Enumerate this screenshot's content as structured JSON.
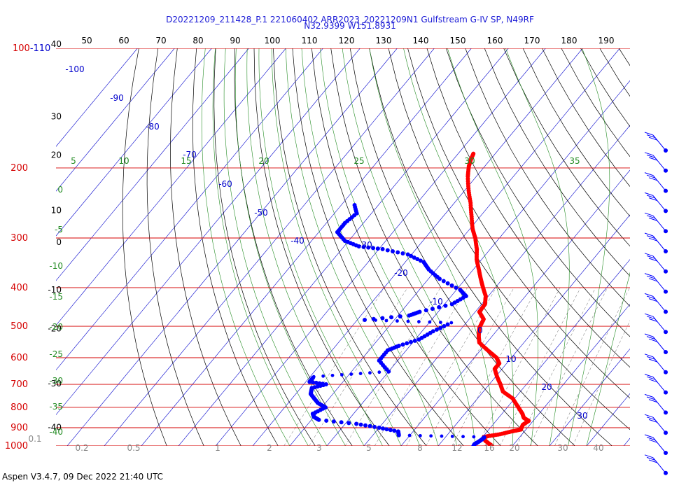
{
  "header": {
    "line1": "D20221209_211428_P.1 221060402 ARR2023_20221209N1 Gulfstream G-IV SP, N49RF",
    "line2": "N32.9399 W151.8931"
  },
  "footer": "Aspen V3.4.7, 09 Dec 2022  21:40 UTC",
  "colors": {
    "temperature": "#ff0000",
    "dewpoint": "#0000ff",
    "isobar": "#d40000",
    "isotherm_labels": "#0000cc",
    "dry_adiabat": "#000000",
    "moist_adiabat": "#228b22",
    "mixing_ratio": "#666666",
    "wind_barb": "#0000ff"
  },
  "chart_data": {
    "type": "skew-t log-p",
    "pressure_ticks": [
      "100-110",
      "200",
      "300",
      "400",
      "500",
      "600",
      "700",
      "800",
      "900",
      "1000"
    ],
    "pressure_levels": [
      1000,
      900,
      800,
      700,
      600,
      500,
      400,
      300,
      200,
      100
    ],
    "height_labels_kft": [
      {
        "label": "40",
        "p": 100
      },
      {
        "label": "30",
        "p": 152
      },
      {
        "label": "20",
        "p": 190
      },
      {
        "label": "10",
        "p": 262
      },
      {
        "label": "0",
        "p": 315
      },
      {
        "label": "-10",
        "p": 415
      },
      {
        "label": "-20",
        "p": 520
      },
      {
        "label": "-30",
        "p": 715
      },
      {
        "label": "-40",
        "p": 920
      }
    ],
    "top_scale": [
      "50",
      "60",
      "70",
      "80",
      "90",
      "100",
      "110",
      "120",
      "130",
      "140",
      "150",
      "160",
      "170",
      "180",
      "190"
    ],
    "isotherm_labels": [
      {
        "label": "-100",
        "T": -100
      },
      {
        "label": "-90",
        "T": -90
      },
      {
        "label": "-80",
        "T": -80
      },
      {
        "label": "-70",
        "T": -70
      },
      {
        "label": "-60",
        "T": -60
      },
      {
        "label": "-50",
        "T": -50
      },
      {
        "label": "-40",
        "T": -40
      },
      {
        "label": "-30",
        "T": -30
      },
      {
        "label": "-20",
        "T": -20
      },
      {
        "label": "-10",
        "T": -10
      },
      {
        "label": "0",
        "T": 0
      },
      {
        "label": "10",
        "T": 10
      },
      {
        "label": "20",
        "T": 20
      },
      {
        "label": "30",
        "T": 30
      }
    ],
    "moist_adiabat_labels_top": [
      "5",
      "10",
      "15",
      "20",
      "25",
      "30",
      "35"
    ],
    "moist_adiabat_labels_left": [
      "0",
      "-5",
      "-10",
      "-15",
      "-20",
      "-25",
      "-30",
      "-35",
      "-40"
    ],
    "mixing_ratio_labels": [
      "0.1",
      "0.2",
      "0.5",
      "1",
      "2",
      "3",
      "5",
      "8",
      "12",
      "16",
      "20",
      "30",
      "40"
    ],
    "temperature_profile": [
      {
        "p": 1000,
        "T": 14.5
      },
      {
        "p": 990,
        "T": 13.5
      },
      {
        "p": 970,
        "T": 11.5
      },
      {
        "p": 950,
        "T": 10.3
      },
      {
        "p": 945,
        "T": 11.3
      },
      {
        "p": 935,
        "T": 14.0
      },
      {
        "p": 920,
        "T": 16.5
      },
      {
        "p": 910,
        "T": 18.6
      },
      {
        "p": 885,
        "T": 18.1
      },
      {
        "p": 865,
        "T": 18.8
      },
      {
        "p": 850,
        "T": 16.8
      },
      {
        "p": 830,
        "T": 15.5
      },
      {
        "p": 800,
        "T": 13.0
      },
      {
        "p": 760,
        "T": 9.5
      },
      {
        "p": 730,
        "T": 5.3
      },
      {
        "p": 700,
        "T": 3.0
      },
      {
        "p": 670,
        "T": 0.4
      },
      {
        "p": 640,
        "T": -2.0
      },
      {
        "p": 620,
        "T": -2.0
      },
      {
        "p": 600,
        "T": -4.0
      },
      {
        "p": 575,
        "T": -8.0
      },
      {
        "p": 550,
        "T": -12.0
      },
      {
        "p": 530,
        "T": -13.6
      },
      {
        "p": 505,
        "T": -15.3
      },
      {
        "p": 480,
        "T": -16.1
      },
      {
        "p": 460,
        "T": -18.9
      },
      {
        "p": 440,
        "T": -19.1
      },
      {
        "p": 420,
        "T": -20.7
      },
      {
        "p": 400,
        "T": -23.3
      },
      {
        "p": 380,
        "T": -25.9
      },
      {
        "p": 360,
        "T": -28.5
      },
      {
        "p": 340,
        "T": -31.3
      },
      {
        "p": 320,
        "T": -33.6
      },
      {
        "p": 300,
        "T": -36.5
      },
      {
        "p": 285,
        "T": -39.2
      },
      {
        "p": 265,
        "T": -42.3
      },
      {
        "p": 245,
        "T": -45.6
      },
      {
        "p": 228,
        "T": -48.9
      },
      {
        "p": 210,
        "T": -52.3
      },
      {
        "p": 198,
        "T": -54.3
      },
      {
        "p": 190,
        "T": -55.3
      },
      {
        "p": 183,
        "T": -56.0
      }
    ],
    "dewpoint_profile": [
      {
        "p": 1005,
        "Td": 9.6
      },
      {
        "p": 990,
        "Td": 9.4
      },
      {
        "p": 975,
        "Td": 10.0
      },
      {
        "p": 960,
        "Td": 10.4
      },
      {
        "p": 950,
        "Td": 10.5
      },
      {
        "p": 940,
        "Td": -13.0
      },
      {
        "p": 920,
        "Td": -14.0
      },
      {
        "p": 900,
        "Td": -20.0
      },
      {
        "p": 880,
        "Td": -27.0
      },
      {
        "p": 860,
        "Td": -38.0
      },
      {
        "p": 845,
        "Td": -40.0
      },
      {
        "p": 830,
        "Td": -41.0
      },
      {
        "p": 800,
        "Td": -39.0
      },
      {
        "p": 780,
        "Td": -42.0
      },
      {
        "p": 760,
        "Td": -44.0
      },
      {
        "p": 740,
        "Td": -46.0
      },
      {
        "p": 715,
        "Td": -47.0
      },
      {
        "p": 700,
        "Td": -44.0
      },
      {
        "p": 690,
        "Td": -49.0
      },
      {
        "p": 670,
        "Td": -49.0
      },
      {
        "p": 650,
        "Td": -30.0
      },
      {
        "p": 610,
        "Td": -35.0
      },
      {
        "p": 575,
        "Td": -35.0
      },
      {
        "p": 560,
        "Td": -33.0
      },
      {
        "p": 540,
        "Td": -29.0
      },
      {
        "p": 515,
        "Td": -27.0
      },
      {
        "p": 490,
        "Td": -24.0
      },
      {
        "p": 482,
        "Td": -48.0
      },
      {
        "p": 470,
        "Td": -37.0
      },
      {
        "p": 460,
        "Td": -35.0
      },
      {
        "p": 440,
        "Td": -28.0
      },
      {
        "p": 420,
        "Td": -26.0
      },
      {
        "p": 405,
        "Td": -29.0
      },
      {
        "p": 380,
        "Td": -37.0
      },
      {
        "p": 360,
        "Td": -42.0
      },
      {
        "p": 345,
        "Td": -45.0
      },
      {
        "p": 330,
        "Td": -51.0
      },
      {
        "p": 320,
        "Td": -59.0
      },
      {
        "p": 315,
        "Td": -66.0
      },
      {
        "p": 305,
        "Td": -71.0
      },
      {
        "p": 290,
        "Td": -75.0
      },
      {
        "p": 275,
        "Td": -75.0
      },
      {
        "p": 260,
        "Td": -74.0
      },
      {
        "p": 245,
        "Td": -77.0
      }
    ],
    "wind_barbs": [
      {
        "p": 180
      },
      {
        "p": 200
      },
      {
        "p": 225
      },
      {
        "p": 250
      },
      {
        "p": 280
      },
      {
        "p": 310
      },
      {
        "p": 340
      },
      {
        "p": 380
      },
      {
        "p": 420
      },
      {
        "p": 470
      },
      {
        "p": 520
      },
      {
        "p": 580
      },
      {
        "p": 640
      },
      {
        "p": 720
      },
      {
        "p": 800
      },
      {
        "p": 900
      },
      {
        "p": 1000
      }
    ]
  }
}
